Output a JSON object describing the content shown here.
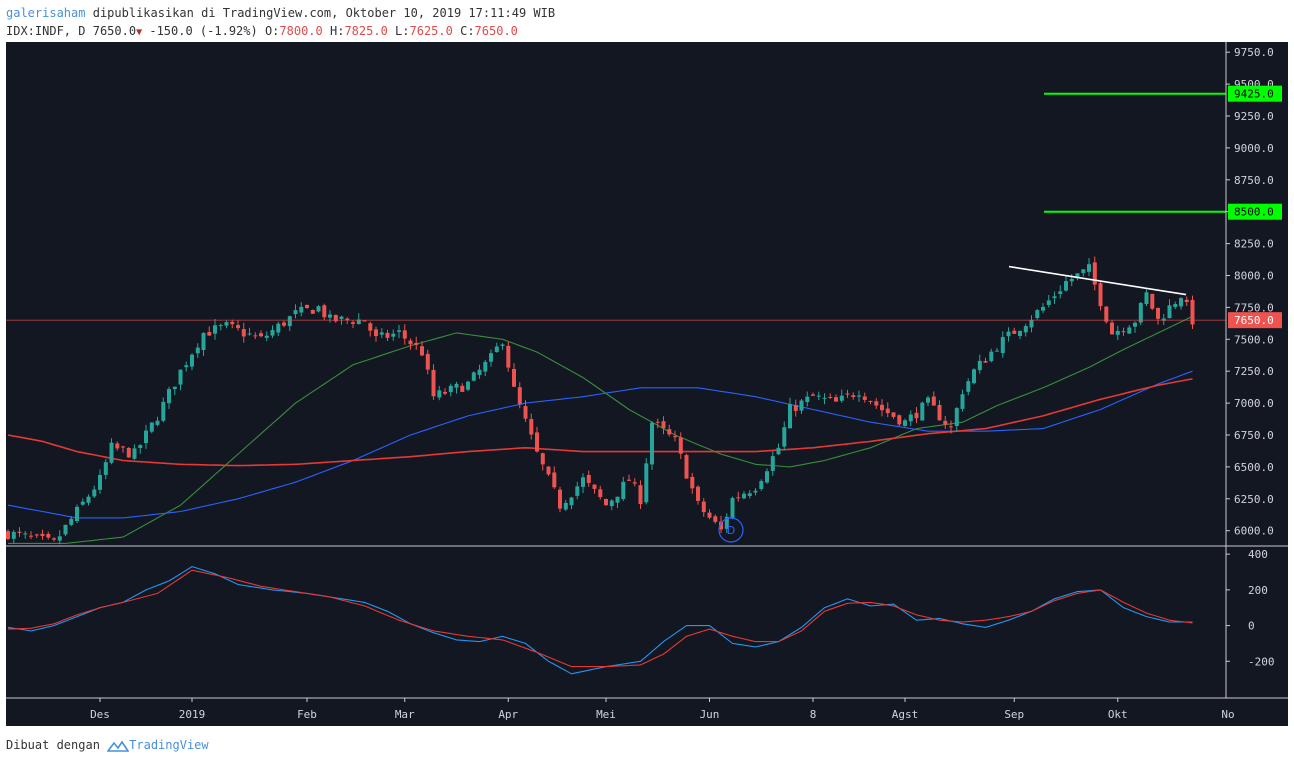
{
  "header": {
    "author": "galerisaham",
    "published": "dipublikasikan di TradingView.com, Oktober 10, 2019 17:11:49 WIB",
    "symbol": "IDX:INDF, D",
    "last": "7650.0",
    "change": "-150.0 (-1.92%)",
    "o_label": "O:",
    "o_value": "7800.0",
    "h_label": "H:",
    "h_value": "7825.0",
    "l_label": "L:",
    "l_value": "7625.0",
    "c_label": "C:",
    "c_value": "7650.0"
  },
  "footer": {
    "prefix": "Dibuat dengan",
    "brand": "TradingView"
  },
  "colors": {
    "background": "#131722",
    "up": "#26a69a",
    "down": "#ef5350",
    "ma_fast": "#388e3c",
    "ma_mid": "#2962ff",
    "ma_slow": "#e53935",
    "target": "#00ff00",
    "trendline": "#ffffff",
    "macd": "#2196f3",
    "signal": "#e53935"
  },
  "chart_data": [
    {
      "type": "candlestick",
      "symbol": "IDX:INDF",
      "interval": "D",
      "ylim": [
        5880,
        9830
      ],
      "y_ticks": [
        "9750.0",
        "9500.0",
        "9250.0",
        "9000.0",
        "8750.0",
        "8500.0",
        "8250.0",
        "8000.0",
        "7750.0",
        "7500.0",
        "7250.0",
        "7000.0",
        "6750.0",
        "6500.0",
        "6250.0",
        "6000.0"
      ],
      "x_ticks": [
        "Des",
        "2019",
        "Feb",
        "Mar",
        "Apr",
        "Mei",
        "Jun",
        "8",
        "Agst",
        "Sep",
        "Okt",
        "No"
      ],
      "price_labels": [
        "9425.0",
        "8500.0",
        "7650.0"
      ],
      "target_levels": [
        9425,
        8500
      ],
      "last_price": 7650,
      "trendline": {
        "from": 8070,
        "to": 7850
      },
      "marker": "D",
      "close_path": [
        [
          0,
          5980
        ],
        [
          8,
          5900
        ],
        [
          12,
          6150
        ],
        [
          16,
          6400
        ],
        [
          18,
          6650
        ],
        [
          22,
          6600
        ],
        [
          26,
          6900
        ],
        [
          30,
          7250
        ],
        [
          34,
          7550
        ],
        [
          38,
          7600
        ],
        [
          44,
          7500
        ],
        [
          50,
          7700
        ],
        [
          54,
          7750
        ],
        [
          56,
          7650
        ],
        [
          62,
          7650
        ],
        [
          64,
          7500
        ],
        [
          68,
          7550
        ],
        [
          72,
          7400
        ],
        [
          74,
          7050
        ],
        [
          80,
          7150
        ],
        [
          84,
          7350
        ],
        [
          86,
          7500
        ],
        [
          88,
          7100
        ],
        [
          92,
          6600
        ],
        [
          96,
          6200
        ],
        [
          100,
          6400
        ],
        [
          104,
          6200
        ],
        [
          108,
          6400
        ],
        [
          110,
          6250
        ],
        [
          112,
          6850
        ],
        [
          116,
          6700
        ],
        [
          120,
          6200
        ],
        [
          124,
          6000
        ],
        [
          126,
          6250
        ],
        [
          130,
          6350
        ],
        [
          134,
          6650
        ],
        [
          136,
          6950
        ],
        [
          140,
          7050
        ],
        [
          144,
          7000
        ],
        [
          148,
          7100
        ],
        [
          152,
          6950
        ],
        [
          156,
          6850
        ],
        [
          160,
          7000
        ],
        [
          164,
          6800
        ],
        [
          166,
          7100
        ],
        [
          168,
          7250
        ],
        [
          172,
          7450
        ],
        [
          176,
          7600
        ],
        [
          180,
          7750
        ],
        [
          184,
          7950
        ],
        [
          188,
          8050
        ],
        [
          190,
          7800
        ],
        [
          192,
          7550
        ],
        [
          196,
          7650
        ],
        [
          198,
          7850
        ],
        [
          200,
          7650
        ],
        [
          202,
          7750
        ],
        [
          204,
          7850
        ],
        [
          206,
          7650
        ]
      ],
      "candle_count": 207,
      "moving_averages": [
        {
          "name": "MA fast",
          "color": "#388e3c",
          "path": [
            [
              0,
              5900
            ],
            [
              10,
              5900
            ],
            [
              20,
              5950
            ],
            [
              30,
              6200
            ],
            [
              40,
              6600
            ],
            [
              50,
              7000
            ],
            [
              60,
              7300
            ],
            [
              70,
              7450
            ],
            [
              78,
              7550
            ],
            [
              86,
              7500
            ],
            [
              92,
              7400
            ],
            [
              100,
              7200
            ],
            [
              108,
              6950
            ],
            [
              116,
              6750
            ],
            [
              124,
              6600
            ],
            [
              130,
              6520
            ],
            [
              136,
              6500
            ],
            [
              142,
              6550
            ],
            [
              150,
              6650
            ],
            [
              158,
              6800
            ],
            [
              166,
              6850
            ],
            [
              172,
              6980
            ],
            [
              180,
              7120
            ],
            [
              188,
              7280
            ],
            [
              194,
              7420
            ],
            [
              200,
              7550
            ],
            [
              206,
              7680
            ]
          ]
        },
        {
          "name": "MA mid",
          "color": "#2962ff",
          "path": [
            [
              0,
              6200
            ],
            [
              6,
              6150
            ],
            [
              12,
              6100
            ],
            [
              20,
              6100
            ],
            [
              30,
              6150
            ],
            [
              40,
              6250
            ],
            [
              50,
              6380
            ],
            [
              60,
              6550
            ],
            [
              70,
              6750
            ],
            [
              80,
              6900
            ],
            [
              90,
              7000
            ],
            [
              100,
              7050
            ],
            [
              110,
              7120
            ],
            [
              120,
              7120
            ],
            [
              130,
              7050
            ],
            [
              140,
              6950
            ],
            [
              150,
              6850
            ],
            [
              160,
              6780
            ],
            [
              170,
              6780
            ],
            [
              180,
              6800
            ],
            [
              190,
              6950
            ],
            [
              200,
              7150
            ],
            [
              206,
              7250
            ]
          ]
        },
        {
          "name": "MA slow",
          "color": "#e53935",
          "path": [
            [
              0,
              6750
            ],
            [
              6,
              6700
            ],
            [
              12,
              6620
            ],
            [
              20,
              6550
            ],
            [
              30,
              6520
            ],
            [
              40,
              6510
            ],
            [
              50,
              6520
            ],
            [
              60,
              6550
            ],
            [
              70,
              6580
            ],
            [
              80,
              6620
            ],
            [
              90,
              6650
            ],
            [
              100,
              6620
            ],
            [
              110,
              6620
            ],
            [
              120,
              6620
            ],
            [
              130,
              6620
            ],
            [
              140,
              6650
            ],
            [
              150,
              6700
            ],
            [
              160,
              6760
            ],
            [
              170,
              6800
            ],
            [
              180,
              6900
            ],
            [
              190,
              7030
            ],
            [
              200,
              7140
            ],
            [
              206,
              7190
            ]
          ]
        }
      ]
    },
    {
      "type": "line",
      "name": "MACD",
      "ylim": [
        -400,
        440
      ],
      "y_ticks": [
        "400",
        "200",
        "0",
        "-200"
      ],
      "series": [
        {
          "color": "#2196f3",
          "values": [
            [
              0,
              -10
            ],
            [
              4,
              -30
            ],
            [
              8,
              0
            ],
            [
              12,
              50
            ],
            [
              16,
              100
            ],
            [
              20,
              130
            ],
            [
              24,
              200
            ],
            [
              28,
              250
            ],
            [
              32,
              330
            ],
            [
              36,
              290
            ],
            [
              40,
              230
            ],
            [
              46,
              200
            ],
            [
              52,
              180
            ],
            [
              58,
              150
            ],
            [
              62,
              130
            ],
            [
              66,
              80
            ],
            [
              70,
              10
            ],
            [
              74,
              -40
            ],
            [
              78,
              -80
            ],
            [
              82,
              -90
            ],
            [
              86,
              -60
            ],
            [
              90,
              -100
            ],
            [
              94,
              -200
            ],
            [
              98,
              -270
            ],
            [
              104,
              -230
            ],
            [
              110,
              -200
            ],
            [
              114,
              -90
            ],
            [
              118,
              0
            ],
            [
              122,
              0
            ],
            [
              126,
              -100
            ],
            [
              130,
              -120
            ],
            [
              134,
              -90
            ],
            [
              138,
              -10
            ],
            [
              142,
              100
            ],
            [
              146,
              150
            ],
            [
              150,
              110
            ],
            [
              154,
              120
            ],
            [
              158,
              30
            ],
            [
              162,
              40
            ],
            [
              166,
              10
            ],
            [
              170,
              -10
            ],
            [
              174,
              30
            ],
            [
              178,
              80
            ],
            [
              182,
              150
            ],
            [
              186,
              190
            ],
            [
              190,
              200
            ],
            [
              194,
              100
            ],
            [
              198,
              50
            ],
            [
              202,
              20
            ],
            [
              206,
              20
            ]
          ]
        },
        {
          "color": "#e53935",
          "values": [
            [
              0,
              -20
            ],
            [
              4,
              -15
            ],
            [
              8,
              10
            ],
            [
              12,
              60
            ],
            [
              16,
              100
            ],
            [
              20,
              130
            ],
            [
              26,
              180
            ],
            [
              32,
              310
            ],
            [
              38,
              270
            ],
            [
              44,
              220
            ],
            [
              50,
              190
            ],
            [
              56,
              160
            ],
            [
              62,
              110
            ],
            [
              68,
              30
            ],
            [
              74,
              -30
            ],
            [
              80,
              -60
            ],
            [
              86,
              -80
            ],
            [
              92,
              -150
            ],
            [
              98,
              -230
            ],
            [
              104,
              -230
            ],
            [
              110,
              -220
            ],
            [
              114,
              -160
            ],
            [
              118,
              -60
            ],
            [
              122,
              -20
            ],
            [
              126,
              -60
            ],
            [
              130,
              -90
            ],
            [
              134,
              -90
            ],
            [
              138,
              -30
            ],
            [
              142,
              80
            ],
            [
              146,
              125
            ],
            [
              150,
              130
            ],
            [
              154,
              110
            ],
            [
              158,
              60
            ],
            [
              162,
              30
            ],
            [
              166,
              20
            ],
            [
              170,
              30
            ],
            [
              174,
              50
            ],
            [
              178,
              80
            ],
            [
              182,
              140
            ],
            [
              186,
              180
            ],
            [
              190,
              200
            ],
            [
              194,
              130
            ],
            [
              198,
              70
            ],
            [
              202,
              30
            ],
            [
              206,
              15
            ]
          ]
        }
      ]
    }
  ]
}
